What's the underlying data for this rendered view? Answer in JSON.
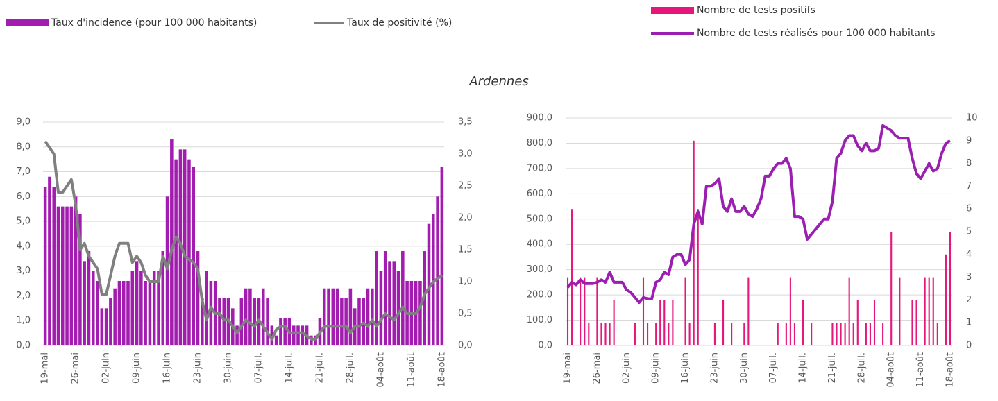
{
  "title": "Ardennes",
  "chart_data": [
    {
      "type": "bar",
      "categories": [
        "19-mai",
        null,
        null,
        null,
        null,
        null,
        null,
        "26-mai",
        null,
        null,
        null,
        null,
        null,
        null,
        "02-juin",
        null,
        null,
        null,
        null,
        null,
        null,
        "09-juin",
        null,
        null,
        null,
        null,
        null,
        null,
        "16-juin",
        null,
        null,
        null,
        null,
        null,
        null,
        "23-juin",
        null,
        null,
        null,
        null,
        null,
        null,
        "30-juin",
        null,
        null,
        null,
        null,
        null,
        null,
        "07-juil.",
        null,
        null,
        null,
        null,
        null,
        null,
        "14-juil.",
        null,
        null,
        null,
        null,
        null,
        null,
        "21-juil.",
        null,
        null,
        null,
        null,
        null,
        null,
        "28-juil.",
        null,
        null,
        null,
        null,
        null,
        null,
        "04-août",
        null,
        null,
        null,
        null,
        null,
        null,
        "11-août",
        null,
        null,
        null,
        null,
        null,
        null,
        "18-août"
      ],
      "ylim": [
        0,
        9
      ],
      "yticks": [
        {
          "value": 0,
          "label": "0,0"
        },
        {
          "value": 1,
          "label": "1,0"
        },
        {
          "value": 2,
          "label": "2,0"
        },
        {
          "value": 3,
          "label": "3,0"
        },
        {
          "value": 4,
          "label": "4,0"
        },
        {
          "value": 5,
          "label": "5,0"
        },
        {
          "value": 6,
          "label": "6,0"
        },
        {
          "value": 7,
          "label": "7,0"
        },
        {
          "value": 8,
          "label": "8,0"
        },
        {
          "value": 9,
          "label": "9,0"
        }
      ],
      "y2lim": [
        0,
        3.5
      ],
      "y2ticks": [
        {
          "value": 0,
          "label": "0,0"
        },
        {
          "value": 0.5,
          "label": "0,5"
        },
        {
          "value": 1,
          "label": "1,0"
        },
        {
          "value": 1.5,
          "label": "1,5"
        },
        {
          "value": 2,
          "label": "2,0"
        },
        {
          "value": 2.5,
          "label": "2,5"
        },
        {
          "value": 3,
          "label": "3,0"
        },
        {
          "value": 3.5,
          "label": "3,5"
        }
      ],
      "grid": true,
      "series": [
        {
          "name": "Taux d'incidence (pour 100 000 habitants)",
          "type": "bar",
          "axis": "y",
          "color": "#a21caf",
          "values": [
            6.4,
            6.8,
            6.4,
            5.6,
            5.6,
            5.6,
            5.6,
            6.0,
            5.3,
            3.4,
            3.8,
            3.0,
            2.6,
            1.5,
            1.5,
            1.9,
            2.3,
            2.6,
            2.6,
            2.6,
            3.0,
            3.4,
            3.0,
            2.6,
            2.6,
            3.0,
            3.0,
            3.8,
            6.0,
            8.3,
            7.5,
            7.9,
            7.9,
            7.5,
            7.2,
            3.8,
            1.9,
            3.0,
            2.6,
            2.6,
            1.9,
            1.9,
            1.9,
            1.5,
            0.8,
            1.9,
            2.3,
            2.3,
            1.9,
            1.9,
            2.3,
            1.9,
            0.8,
            0.4,
            1.1,
            1.1,
            1.1,
            0.8,
            0.8,
            0.8,
            0.8,
            0.4,
            0.4,
            1.1,
            2.3,
            2.3,
            2.3,
            2.3,
            1.9,
            1.9,
            2.3,
            1.5,
            1.9,
            1.9,
            2.3,
            2.3,
            3.8,
            3.0,
            3.8,
            3.4,
            3.4,
            3.0,
            3.8,
            2.6,
            2.6,
            2.6,
            2.6,
            3.8,
            4.9,
            5.3,
            6.0,
            7.2
          ]
        },
        {
          "name": "Taux de positivité (%)",
          "type": "line",
          "axis": "y2",
          "color": "#808080",
          "values": [
            3.2,
            3.1,
            3.0,
            2.4,
            2.4,
            2.5,
            2.6,
            2.2,
            1.5,
            1.6,
            1.4,
            1.3,
            1.2,
            0.8,
            0.8,
            1.1,
            1.4,
            1.6,
            1.6,
            1.6,
            1.3,
            1.4,
            1.3,
            1.1,
            1.0,
            1.0,
            1.0,
            1.4,
            1.2,
            1.5,
            1.7,
            1.6,
            1.4,
            1.35,
            1.3,
            1.2,
            0.7,
            0.4,
            0.6,
            0.5,
            0.5,
            0.4,
            0.4,
            0.3,
            0.2,
            0.3,
            0.4,
            0.35,
            0.3,
            0.4,
            0.3,
            0.2,
            0.1,
            0.25,
            0.3,
            0.3,
            0.2,
            0.2,
            0.2,
            0.2,
            0.15,
            0.1,
            0.1,
            0.2,
            0.3,
            0.3,
            0.3,
            0.3,
            0.3,
            0.3,
            0.2,
            0.3,
            0.3,
            0.35,
            0.3,
            0.4,
            0.3,
            0.4,
            0.5,
            0.45,
            0.4,
            0.5,
            0.6,
            0.5,
            0.5,
            0.5,
            0.6,
            0.8,
            0.9,
            1.0,
            1.05,
            1.1
          ]
        }
      ]
    },
    {
      "type": "bar",
      "categories": [
        "19-mai",
        null,
        null,
        null,
        null,
        null,
        null,
        "26-mai",
        null,
        null,
        null,
        null,
        null,
        null,
        "02-juin",
        null,
        null,
        null,
        null,
        null,
        null,
        "09-juin",
        null,
        null,
        null,
        null,
        null,
        null,
        "16-juin",
        null,
        null,
        null,
        null,
        null,
        null,
        "23-juin",
        null,
        null,
        null,
        null,
        null,
        null,
        "30-juin",
        null,
        null,
        null,
        null,
        null,
        null,
        "07-juil.",
        null,
        null,
        null,
        null,
        null,
        null,
        "14-juil.",
        null,
        null,
        null,
        null,
        null,
        null,
        "21-juil.",
        null,
        null,
        null,
        null,
        null,
        null,
        "28-juil.",
        null,
        null,
        null,
        null,
        null,
        null,
        "04-août",
        null,
        null,
        null,
        null,
        null,
        null,
        "11-août",
        null,
        null,
        null,
        null,
        null,
        null,
        "18-août"
      ],
      "ylim": [
        0,
        900
      ],
      "yticks": [
        {
          "value": 0,
          "label": "0,0"
        },
        {
          "value": 100,
          "label": "100,0"
        },
        {
          "value": 200,
          "label": "200,0"
        },
        {
          "value": 300,
          "label": "300,0"
        },
        {
          "value": 400,
          "label": "400,0"
        },
        {
          "value": 500,
          "label": "500,0"
        },
        {
          "value": 600,
          "label": "600,0"
        },
        {
          "value": 700,
          "label": "700,0"
        },
        {
          "value": 800,
          "label": "800,0"
        },
        {
          "value": 900,
          "label": "900,0"
        }
      ],
      "y2lim": [
        0,
        10
      ],
      "y2ticks": [
        0,
        1,
        2,
        3,
        4,
        5,
        6,
        7,
        8,
        9,
        10
      ],
      "grid": true,
      "series": [
        {
          "name": "Nombre de tests positifs",
          "type": "bar",
          "axis": "y2",
          "color": "#e5177b",
          "values": [
            3,
            6,
            0,
            3,
            3,
            1,
            0,
            3,
            1,
            1,
            1,
            2,
            0,
            0,
            0,
            0,
            1,
            0,
            3,
            1,
            0,
            1,
            2,
            2,
            1,
            2,
            0,
            0,
            3,
            1,
            9,
            6,
            0,
            0,
            0,
            1,
            0,
            2,
            0,
            1,
            0,
            0,
            1,
            3,
            0,
            0,
            0,
            0,
            0,
            0,
            1,
            0,
            1,
            3,
            1,
            0,
            2,
            0,
            1,
            0,
            0,
            0,
            0,
            1,
            1,
            1,
            1,
            3,
            1,
            2,
            0,
            1,
            1,
            2,
            0,
            1,
            0,
            5,
            0,
            3,
            0,
            0,
            2,
            2,
            0,
            3,
            3,
            3,
            1,
            0,
            4,
            5
          ]
        },
        {
          "name": "Nombre de tests réalisés pour 100 000 habitants",
          "type": "line",
          "axis": "y",
          "color": "#9b1fb0",
          "values": [
            230,
            250,
            240,
            260,
            245,
            245,
            245,
            250,
            260,
            250,
            290,
            250,
            250,
            250,
            220,
            210,
            190,
            170,
            190,
            185,
            185,
            250,
            260,
            290,
            280,
            350,
            360,
            360,
            320,
            340,
            480,
            530,
            480,
            630,
            630,
            640,
            660,
            550,
            530,
            580,
            530,
            530,
            550,
            520,
            510,
            540,
            580,
            670,
            670,
            700,
            720,
            720,
            740,
            700,
            510,
            510,
            500,
            420,
            440,
            460,
            480,
            500,
            500,
            570,
            740,
            760,
            810,
            830,
            830,
            790,
            770,
            800,
            770,
            770,
            780,
            870,
            860,
            850,
            830,
            820,
            820,
            820,
            740,
            680,
            660,
            690,
            720,
            690,
            700,
            760,
            800,
            810
          ]
        }
      ]
    }
  ]
}
